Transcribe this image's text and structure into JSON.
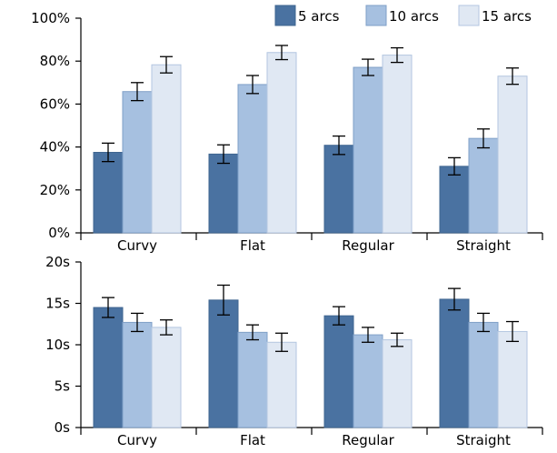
{
  "chart_data": [
    {
      "type": "bar",
      "categories": [
        "Curvy",
        "Flat",
        "Regular",
        "Straight"
      ],
      "ylim": [
        0,
        100
      ],
      "yticks": [
        0,
        20,
        40,
        60,
        80,
        100
      ],
      "ytick_labels": [
        "0%",
        "20%",
        "40%",
        "60%",
        "80%",
        "100%"
      ],
      "legend_placement": "top-right",
      "series": [
        {
          "name": "5 arcs",
          "color": "#4a72a1",
          "values": [
            37.5,
            36.7,
            40.8,
            31.0
          ],
          "errors": [
            4.3,
            4.3,
            4.3,
            4.0
          ]
        },
        {
          "name": "10 arcs",
          "color": "#a6c0e0",
          "values": [
            65.8,
            69.1,
            77.1,
            44.0
          ],
          "errors": [
            4.2,
            4.2,
            3.8,
            4.4
          ]
        },
        {
          "name": "15 arcs",
          "color": "#e0e8f3",
          "values": [
            78.3,
            84.0,
            82.8,
            73.0
          ],
          "errors": [
            3.8,
            3.3,
            3.4,
            3.8
          ]
        }
      ]
    },
    {
      "type": "bar",
      "categories": [
        "Curvy",
        "Flat",
        "Regular",
        "Straight"
      ],
      "ylim": [
        0,
        20
      ],
      "yticks": [
        0,
        5,
        10,
        15,
        20
      ],
      "ytick_labels": [
        "0s",
        "5s",
        "10s",
        "15s",
        "20s"
      ],
      "series": [
        {
          "name": "5 arcs",
          "color": "#4a72a1",
          "values": [
            14.5,
            15.4,
            13.5,
            15.5
          ],
          "errors": [
            1.2,
            1.8,
            1.1,
            1.3
          ]
        },
        {
          "name": "10 arcs",
          "color": "#a6c0e0",
          "values": [
            12.7,
            11.5,
            11.2,
            12.7
          ],
          "errors": [
            1.1,
            0.9,
            0.9,
            1.1
          ]
        },
        {
          "name": "15 arcs",
          "color": "#e0e8f3",
          "values": [
            12.1,
            10.3,
            10.6,
            11.6
          ],
          "errors": [
            0.9,
            1.1,
            0.8,
            1.2
          ]
        }
      ]
    }
  ]
}
